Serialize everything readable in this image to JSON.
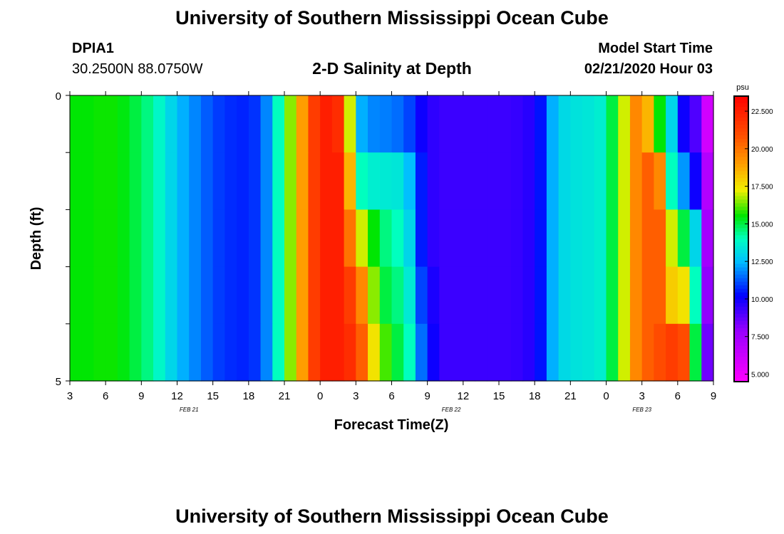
{
  "header": {
    "title_top": "University of Southern Mississippi Ocean Cube",
    "title_bottom": "University of Southern Mississippi Ocean Cube",
    "station": "DPIA1",
    "coords": "30.2500N 88.0750W",
    "model_start_label": "Model Start Time",
    "model_start_value": "02/21/2020 Hour 03"
  },
  "chart_data": {
    "type": "heatmap",
    "title": "2-D Salinity at Depth",
    "xlabel": "Forecast Time(Z)",
    "ylabel": "Depth (ft)",
    "x_ticks": [
      "3",
      "6",
      "9",
      "12",
      "15",
      "18",
      "21",
      "0",
      "3",
      "6",
      "9",
      "12",
      "15",
      "18",
      "21",
      "0",
      "3",
      "6",
      "9"
    ],
    "date_labels": [
      {
        "text": "FEB  21",
        "hour_index": 10
      },
      {
        "text": "FEB  22",
        "hour_index": 32
      },
      {
        "text": "FEB  23",
        "hour_index": 48
      }
    ],
    "y_ticks": [
      "0",
      "5"
    ],
    "ylim": [
      0,
      5
    ],
    "x_hours_from_start": [
      0,
      54
    ],
    "depth_levels": [
      0,
      1,
      2,
      3,
      4,
      5
    ],
    "colorbar": {
      "unit": "psu",
      "min": 4.5,
      "max": 23.5,
      "ticks": [
        "5.000",
        "7.500",
        "10.000",
        "12.500",
        "15.000",
        "17.500",
        "20.000",
        "22.500"
      ]
    },
    "series": [
      {
        "name": "depth 0-1 ft",
        "values": [
          15.5,
          15.5,
          15.6,
          15.6,
          15.4,
          15.0,
          14.5,
          13.8,
          13.0,
          12.3,
          11.8,
          11.3,
          10.9,
          10.7,
          10.6,
          10.8,
          11.8,
          14.0,
          16.5,
          19.0,
          21.5,
          22.5,
          22.0,
          17.0,
          12.3,
          11.8,
          11.7,
          11.5,
          11.0,
          10.0,
          9.5,
          9.3,
          9.3,
          9.3,
          9.3,
          9.3,
          9.3,
          9.4,
          9.6,
          10.4,
          12.3,
          13.1,
          13.3,
          13.4,
          13.6,
          15.0,
          17.0,
          19.5,
          18.5,
          15.5,
          13.0,
          10.0,
          9.0,
          6.0
        ]
      },
      {
        "name": "depth 1-2 ft",
        "values": [
          15.5,
          15.5,
          15.6,
          15.6,
          15.4,
          15.0,
          14.5,
          13.8,
          13.0,
          12.3,
          11.8,
          11.3,
          10.9,
          10.7,
          10.6,
          10.8,
          11.8,
          14.0,
          16.5,
          19.0,
          21.5,
          22.5,
          22.5,
          18.5,
          14.0,
          13.6,
          13.5,
          13.4,
          12.5,
          10.5,
          9.5,
          9.3,
          9.3,
          9.3,
          9.3,
          9.3,
          9.3,
          9.4,
          9.6,
          10.4,
          12.3,
          13.1,
          13.3,
          13.4,
          13.6,
          15.0,
          17.0,
          19.5,
          20.5,
          19.5,
          14.0,
          12.0,
          10.0,
          7.0
        ]
      },
      {
        "name": "depth 2-3 ft",
        "values": [
          15.5,
          15.5,
          15.6,
          15.6,
          15.4,
          15.0,
          14.5,
          13.8,
          13.0,
          12.3,
          11.8,
          11.3,
          10.9,
          10.7,
          10.6,
          10.8,
          11.8,
          14.0,
          16.5,
          19.0,
          21.5,
          22.5,
          22.5,
          20.0,
          17.0,
          15.5,
          14.5,
          14.0,
          13.0,
          10.5,
          9.5,
          9.3,
          9.3,
          9.3,
          9.3,
          9.3,
          9.3,
          9.4,
          9.6,
          10.4,
          12.3,
          13.1,
          13.3,
          13.4,
          13.6,
          15.0,
          17.0,
          19.5,
          20.5,
          20.5,
          17.0,
          15.0,
          13.0,
          7.5
        ]
      },
      {
        "name": "depth 3-4 ft",
        "values": [
          15.5,
          15.5,
          15.6,
          15.6,
          15.4,
          15.0,
          14.5,
          13.8,
          13.0,
          12.3,
          11.8,
          11.3,
          10.9,
          10.7,
          10.6,
          10.8,
          11.8,
          14.0,
          16.5,
          19.0,
          21.5,
          22.5,
          22.5,
          21.5,
          19.5,
          16.5,
          15.0,
          14.5,
          13.5,
          11.0,
          9.8,
          9.3,
          9.3,
          9.3,
          9.3,
          9.3,
          9.3,
          9.4,
          9.6,
          10.4,
          12.3,
          13.1,
          13.3,
          13.4,
          13.6,
          15.0,
          17.0,
          19.5,
          20.5,
          20.5,
          18.0,
          17.5,
          14.0,
          8.0
        ]
      },
      {
        "name": "depth 4-5 ft",
        "values": [
          15.5,
          15.5,
          15.6,
          15.6,
          15.4,
          15.0,
          14.5,
          13.8,
          13.0,
          12.3,
          11.8,
          11.3,
          10.9,
          10.7,
          10.6,
          10.8,
          11.8,
          14.0,
          16.5,
          19.0,
          21.5,
          22.5,
          22.5,
          22.0,
          20.5,
          17.5,
          16.0,
          15.0,
          14.0,
          11.5,
          10.0,
          9.3,
          9.3,
          9.3,
          9.3,
          9.3,
          9.3,
          9.4,
          9.6,
          10.4,
          12.3,
          13.1,
          13.3,
          13.4,
          13.6,
          15.0,
          17.0,
          19.5,
          20.5,
          21.0,
          21.5,
          21.0,
          15.0,
          8.5
        ]
      }
    ]
  }
}
